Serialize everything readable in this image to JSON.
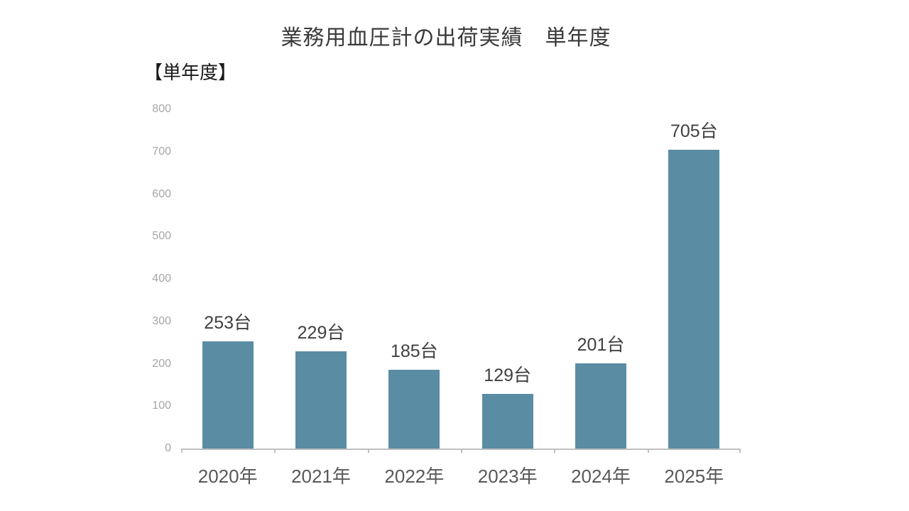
{
  "title": "業務用血圧計の出荷実績　単年度",
  "corner_label": "【単年度】",
  "chart_data": {
    "type": "bar",
    "title": "業務用血圧計の出荷実績　単年度",
    "categories": [
      "2020年",
      "2021年",
      "2022年",
      "2023年",
      "2024年",
      "2025年"
    ],
    "values": [
      253,
      229,
      185,
      129,
      201,
      705
    ],
    "value_labels": [
      "253台",
      "229台",
      "185台",
      "129台",
      "201台",
      "705台"
    ],
    "unit_suffix": "台",
    "xlabel": "",
    "ylabel": "",
    "ylim": [
      0,
      800
    ],
    "yticks": [
      0,
      100,
      200,
      300,
      400,
      500,
      600,
      700,
      800
    ],
    "grid": false,
    "legend": "none",
    "colors": {
      "bar": "#5A8CA4",
      "axis_line": "#BFBFBF",
      "value_label": "#404040",
      "xtick_label": "#595959",
      "ytick_label": "#A6A6A6",
      "title": "#3A3A3A",
      "corner_label": "#1A1A1A"
    }
  }
}
